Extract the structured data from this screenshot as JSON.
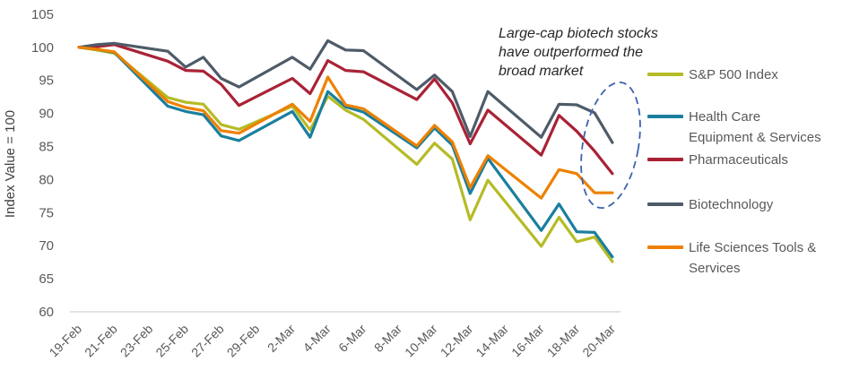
{
  "figure": {
    "background": "#ffffff",
    "axis_line_color": "#d9d9d9",
    "tick_label_color": "#595959",
    "y_axis_title_color": "#404040",
    "annotation": {
      "lines": [
        "Large-cap biotech stocks",
        "have outperformed the",
        "broad market"
      ],
      "text_color": "#262626",
      "ellipse_color": "#3e61ae"
    }
  },
  "legend": {
    "items": [
      {
        "label": "S&P 500 Index",
        "lines": [
          "S&P 500 Index"
        ],
        "color": "#b5bb25"
      },
      {
        "label": "Health Care Equipment & Services",
        "lines": [
          "Health Care",
          "Equipment & Services"
        ],
        "color": "#1a7f9e"
      },
      {
        "label": "Pharmaceuticals",
        "lines": [
          "Pharmaceuticals"
        ],
        "color": "#a92236"
      },
      {
        "label": "Biotechnology",
        "lines": [
          "Biotechnology"
        ],
        "color": "#4e5b68"
      },
      {
        "label": "Life Sciences Tools & Services",
        "lines": [
          "Life Sciences Tools &",
          "Services"
        ],
        "color": "#ee8100"
      }
    ]
  },
  "chart_data": {
    "type": "line",
    "title": "",
    "xlabel": "",
    "ylabel": "Index Value = 100",
    "ylim": [
      60,
      105
    ],
    "yticks": [
      105,
      100,
      95,
      90,
      85,
      80,
      75,
      70,
      65,
      60
    ],
    "grid": false,
    "legend_position": "right",
    "annotation": "Large-cap biotech stocks have outperformed the broad market",
    "annotation_highlight": "dashed ellipse around final Biotechnology points",
    "x_axis_tick_labels": [
      "19-Feb",
      "21-Feb",
      "23-Feb",
      "25-Feb",
      "27-Feb",
      "29-Feb",
      "2-Mar",
      "4-Mar",
      "6-Mar",
      "8-Mar",
      "10-Mar",
      "12-Mar",
      "14-Mar",
      "16-Mar",
      "18-Mar",
      "20-Mar"
    ],
    "x_tick_day_offsets": [
      0,
      2,
      4,
      6,
      8,
      10,
      12,
      14,
      16,
      18,
      20,
      22,
      24,
      26,
      28,
      30
    ],
    "x": [
      "19-Feb",
      "20-Feb",
      "21-Feb",
      "24-Feb",
      "25-Feb",
      "26-Feb",
      "27-Feb",
      "28-Feb",
      "2-Mar",
      "3-Mar",
      "4-Mar",
      "5-Mar",
      "6-Mar",
      "9-Mar",
      "10-Mar",
      "11-Mar",
      "12-Mar",
      "13-Mar",
      "16-Mar",
      "17-Mar",
      "18-Mar",
      "19-Mar",
      "20-Mar"
    ],
    "x_day_offsets": [
      0,
      1,
      2,
      5,
      6,
      7,
      8,
      9,
      12,
      13,
      14,
      15,
      16,
      19,
      20,
      21,
      22,
      23,
      26,
      27,
      28,
      29,
      30
    ],
    "series": [
      {
        "name": "S&P 500 Index",
        "color": "#b5bb25",
        "values": [
          100,
          99.6,
          99.1,
          92.4,
          91.7,
          91.4,
          88.3,
          87.6,
          91.1,
          87.5,
          92.6,
          90.5,
          89.1,
          82.3,
          85.5,
          83.1,
          73.9,
          79.9,
          69.9,
          74.3,
          70.6,
          71.3,
          67.6
        ]
      },
      {
        "name": "Health Care Equipment & Services",
        "color": "#1a7f9e",
        "values": [
          100,
          99.7,
          99.2,
          91.1,
          90.3,
          89.8,
          86.6,
          85.9,
          90.3,
          86.4,
          93.3,
          91.0,
          90.2,
          84.8,
          87.8,
          85.2,
          77.9,
          83.2,
          72.3,
          76.3,
          72.1,
          72.0,
          68.3
        ]
      },
      {
        "name": "Pharmaceuticals",
        "color": "#a92236",
        "values": [
          100,
          100.1,
          100.4,
          97.9,
          96.5,
          96.4,
          94.4,
          91.2,
          95.3,
          93.0,
          98.0,
          96.5,
          96.3,
          92.1,
          95.2,
          91.6,
          85.4,
          90.5,
          83.7,
          89.7,
          87.3,
          84.3,
          80.9
        ]
      },
      {
        "name": "Biotechnology",
        "color": "#4e5b68",
        "values": [
          100,
          100.4,
          100.6,
          99.4,
          97.0,
          98.5,
          95.3,
          94.0,
          98.5,
          96.7,
          101.0,
          99.6,
          99.5,
          93.6,
          95.8,
          93.3,
          86.5,
          93.3,
          86.4,
          91.4,
          91.3,
          90.1,
          85.6
        ]
      },
      {
        "name": "Life Sciences Tools & Services",
        "color": "#ee8100",
        "values": [
          100,
          99.7,
          99.3,
          91.8,
          90.9,
          90.4,
          87.4,
          87.0,
          91.4,
          88.8,
          95.5,
          91.3,
          90.7,
          85.1,
          88.2,
          85.7,
          78.8,
          83.6,
          77.2,
          81.5,
          80.9,
          78.0,
          78.0
        ]
      }
    ]
  }
}
